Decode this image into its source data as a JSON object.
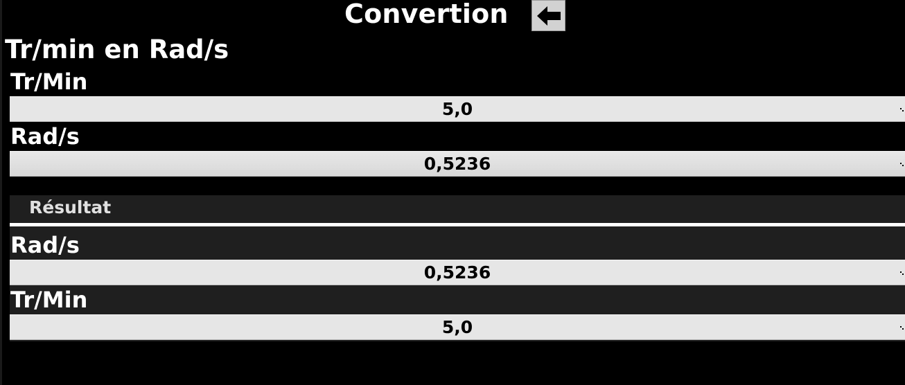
{
  "header": {
    "title": "Convertion",
    "back_icon": "arrow-left-icon"
  },
  "section": {
    "title": "Tr/min en Rad/s"
  },
  "inputs": [
    {
      "label": "Tr/Min",
      "value": "5,0"
    },
    {
      "label": "Rad/s",
      "value": "0,5236"
    }
  ],
  "result": {
    "title": "Résultat",
    "fields": [
      {
        "label": "Rad/s",
        "value": "0,5236"
      },
      {
        "label": "Tr/Min",
        "value": "5,0"
      }
    ]
  },
  "colors": {
    "background": "#000000",
    "field_background": "#e6e6e6",
    "result_band": "#1f1f1f",
    "divider": "#ffffff"
  }
}
